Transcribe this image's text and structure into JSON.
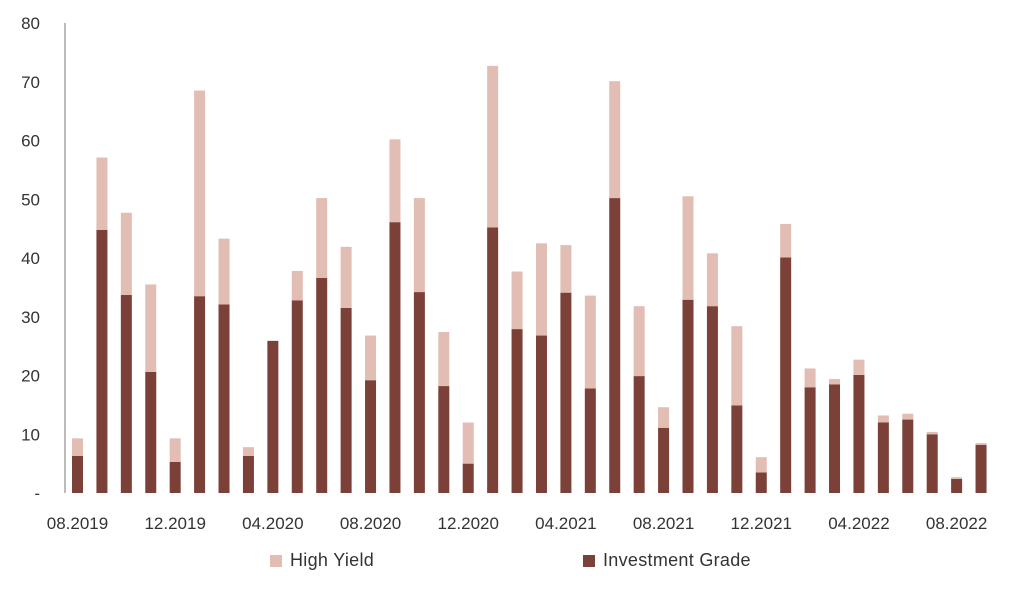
{
  "chart_data": {
    "type": "bar",
    "stacked": true,
    "title": "",
    "xlabel": "",
    "ylabel": "",
    "ylim": [
      0,
      80
    ],
    "y_ticks": [
      {
        "value": 0,
        "label": "-"
      },
      {
        "value": 10,
        "label": "10"
      },
      {
        "value": 20,
        "label": "20"
      },
      {
        "value": 30,
        "label": "30"
      },
      {
        "value": 40,
        "label": "40"
      },
      {
        "value": 50,
        "label": "50"
      },
      {
        "value": 60,
        "label": "60"
      },
      {
        "value": 70,
        "label": "70"
      },
      {
        "value": 80,
        "label": "80"
      }
    ],
    "grid": false,
    "legend_position": "bottom",
    "categories": [
      "08.2019",
      "09.2019",
      "10.2019",
      "11.2019",
      "12.2019",
      "01.2020",
      "02.2020",
      "03.2020",
      "04.2020",
      "05.2020",
      "06.2020",
      "07.2020",
      "08.2020",
      "09.2020",
      "10.2020",
      "11.2020",
      "12.2020",
      "01.2021",
      "02.2021",
      "03.2021",
      "04.2021",
      "05.2021",
      "06.2021",
      "07.2021",
      "08.2021",
      "09.2021",
      "10.2021",
      "11.2021",
      "12.2021",
      "01.2022",
      "02.2022",
      "03.2022",
      "04.2022",
      "05.2022",
      "06.2022",
      "07.2022",
      "08.2022",
      "09.2022"
    ],
    "x_tick_labels": [
      "08.2019",
      "12.2019",
      "04.2020",
      "08.2020",
      "12.2020",
      "04.2021",
      "08.2021",
      "12.2021",
      "04.2022",
      "08.2022"
    ],
    "series": [
      {
        "name": "Investment Grade",
        "color": "#7b4038",
        "values": [
          6.3,
          44.8,
          33.7,
          20.6,
          5.3,
          33.5,
          32.1,
          6.3,
          25.9,
          32.8,
          36.6,
          31.5,
          19.2,
          46.1,
          34.2,
          18.2,
          5.0,
          45.2,
          27.9,
          26.8,
          34.1,
          17.8,
          50.2,
          19.9,
          11.1,
          32.9,
          31.8,
          14.9,
          3.5,
          40.1,
          18.0,
          18.5,
          20.1,
          12.0,
          12.5,
          10.0,
          2.4,
          8.2
        ]
      },
      {
        "name": "High Yield",
        "color": "#e2bdb3",
        "values": [
          3.0,
          12.3,
          14.0,
          14.9,
          4.0,
          35.0,
          11.2,
          1.5,
          0.0,
          5.0,
          13.6,
          10.4,
          7.6,
          14.1,
          16.0,
          9.2,
          7.0,
          27.5,
          9.8,
          15.7,
          8.1,
          15.8,
          19.9,
          11.9,
          3.5,
          17.6,
          9.0,
          13.5,
          2.6,
          5.7,
          3.2,
          0.9,
          2.6,
          1.2,
          1.0,
          0.4,
          0.3,
          0.3
        ]
      }
    ]
  },
  "legend": [
    {
      "name": "High Yield",
      "color": "#e2bdb3"
    },
    {
      "name": "Investment Grade",
      "color": "#7b4038"
    }
  ]
}
